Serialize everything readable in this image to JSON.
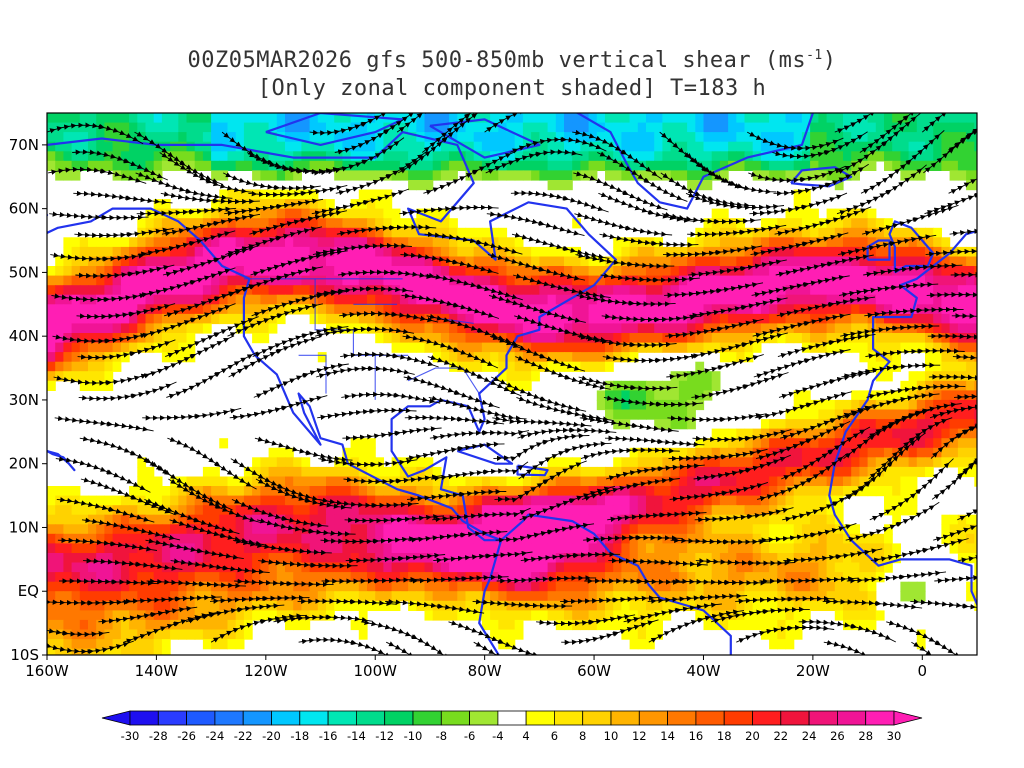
{
  "title": {
    "line1_prefix": "00Z05MAR2026 gfs 500-850mb vertical shear (ms",
    "line1_sup": "-1",
    "line1_suffix": ")",
    "line2": "[Only zonal component shaded] T=183 h"
  },
  "map": {
    "lon_range": [
      -160,
      10
    ],
    "lat_range": [
      -10,
      75
    ],
    "coast_color": "#2233ee",
    "stream_color": "#000000",
    "lat_labels": [
      {
        "lat": 70,
        "label": "70N"
      },
      {
        "lat": 60,
        "label": "60N"
      },
      {
        "lat": 50,
        "label": "50N"
      },
      {
        "lat": 40,
        "label": "40N"
      },
      {
        "lat": 30,
        "label": "30N"
      },
      {
        "lat": 20,
        "label": "20N"
      },
      {
        "lat": 10,
        "label": "10N"
      },
      {
        "lat": 0,
        "label": "EQ"
      },
      {
        "lat": -10,
        "label": "10S"
      }
    ],
    "lon_labels": [
      {
        "lon": -160,
        "label": "160W"
      },
      {
        "lon": -140,
        "label": "140W"
      },
      {
        "lon": -120,
        "label": "120W"
      },
      {
        "lon": -100,
        "label": "100W"
      },
      {
        "lon": -80,
        "label": "80W"
      },
      {
        "lon": -60,
        "label": "60W"
      },
      {
        "lon": -40,
        "label": "40W"
      },
      {
        "lon": -20,
        "label": "20W"
      },
      {
        "lon": 0,
        "label": "0"
      }
    ]
  },
  "colorbar": {
    "labels": [
      "-30",
      "-28",
      "-26",
      "-24",
      "-22",
      "-20",
      "-18",
      "-16",
      "-14",
      "-12",
      "-10",
      "-8",
      "-6",
      "-4",
      "4",
      "6",
      "8",
      "10",
      "12",
      "14",
      "16",
      "18",
      "20",
      "22",
      "24",
      "26",
      "28",
      "30"
    ],
    "colors": [
      "#1e0ff0",
      "#2a3cff",
      "#1e5aff",
      "#1e78ff",
      "#1496ff",
      "#00c8ff",
      "#00e6f0",
      "#00e6b4",
      "#00dc8c",
      "#00d264",
      "#32d232",
      "#78dc1e",
      "#a0e632",
      "#ffffff",
      "#ffff00",
      "#ffe600",
      "#ffd200",
      "#ffb400",
      "#ff9600",
      "#ff7800",
      "#ff5a00",
      "#ff3c00",
      "#ff1e1e",
      "#f0143c",
      "#f01478",
      "#f01496",
      "#ff1eb4"
    ],
    "left_arrow_color": "#1e0ff0",
    "right_arrow_color": "#ff1eb4"
  },
  "shear_field": {
    "jets": [
      {
        "name": "midlat-jet",
        "lat_center": 46,
        "amp": 30
      },
      {
        "name": "subtropical-pacific-jet",
        "lat_center": 3,
        "amp": 24
      },
      {
        "name": "atlantic-subtropical-jet",
        "lat_center": 16,
        "amp": 22
      }
    ]
  }
}
